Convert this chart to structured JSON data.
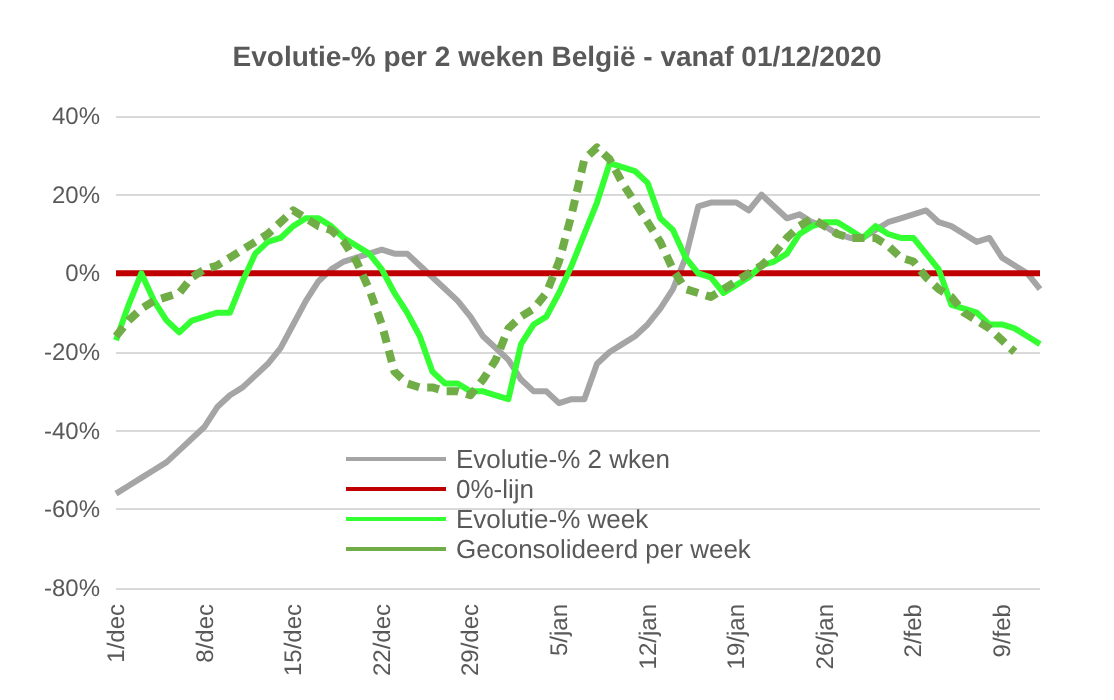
{
  "chart_data": {
    "type": "line",
    "title": "Evolutie-% per 2 weken België - vanaf 01/12/2020",
    "categories": [
      "1/dec",
      null,
      null,
      null,
      null,
      null,
      null,
      "8/dec",
      null,
      null,
      null,
      null,
      null,
      null,
      "15/dec",
      null,
      null,
      null,
      null,
      null,
      null,
      "22/dec",
      null,
      null,
      null,
      null,
      null,
      null,
      "29/dec",
      null,
      null,
      null,
      null,
      null,
      null,
      "5/jan",
      null,
      null,
      null,
      null,
      null,
      null,
      "12/jan",
      null,
      null,
      null,
      null,
      null,
      null,
      "19/jan",
      null,
      null,
      null,
      null,
      null,
      null,
      "26/jan",
      null,
      null,
      null,
      null,
      null,
      null,
      "2/feb",
      null,
      null,
      null,
      null,
      null,
      null,
      "9/feb",
      null,
      null,
      null
    ],
    "series": [
      {
        "name": "Evolutie-% 2 wken",
        "color": "#a5a5a5",
        "line_style": "solid",
        "values": [
          -56,
          -54,
          -52,
          -50,
          -48,
          -45,
          -42,
          -39,
          -34,
          -31,
          -29,
          -26,
          -23,
          -19,
          -13,
          -7,
          -2,
          1,
          3,
          4,
          5,
          6,
          5,
          5,
          2,
          -1,
          -4,
          -7,
          -11,
          -16,
          -19,
          -22,
          -27,
          -30,
          -30,
          -33,
          -32,
          -32,
          -23,
          -20,
          -18,
          -16,
          -13,
          -9,
          -4,
          4,
          17,
          18,
          18,
          18,
          16,
          20,
          17,
          14,
          15,
          13,
          12,
          10,
          9,
          9,
          11,
          13,
          14,
          15,
          16,
          13,
          12,
          10,
          8,
          9,
          4,
          2,
          0,
          -4
        ]
      },
      {
        "name": "0%-lijn",
        "color": "#c00000",
        "line_style": "solid",
        "values": [
          0,
          0,
          0,
          0,
          0,
          0,
          0,
          0,
          0,
          0,
          0,
          0,
          0,
          0,
          0,
          0,
          0,
          0,
          0,
          0,
          0,
          0,
          0,
          0,
          0,
          0,
          0,
          0,
          0,
          0,
          0,
          0,
          0,
          0,
          0,
          0,
          0,
          0,
          0,
          0,
          0,
          0,
          0,
          0,
          0,
          0,
          0,
          0,
          0,
          0,
          0,
          0,
          0,
          0,
          0,
          0,
          0,
          0,
          0,
          0,
          0,
          0,
          0,
          0,
          0,
          0,
          0,
          0,
          0,
          0,
          0,
          0,
          0,
          0
        ]
      },
      {
        "name": "Evolutie-% week",
        "color": "#33ff33",
        "line_style": "solid",
        "values": [
          -17,
          -8,
          0,
          -7,
          -12,
          -15,
          -12,
          -11,
          -10,
          -10,
          -2,
          5,
          8,
          9,
          12,
          14,
          14,
          12,
          9,
          7,
          5,
          1,
          -5,
          -10,
          -16,
          -25,
          -28,
          -28,
          -30,
          -30,
          -31,
          -32,
          -18,
          -13,
          -11,
          -5,
          2,
          10,
          18,
          28,
          27,
          26,
          23,
          14,
          11,
          4,
          0,
          -1,
          -5,
          -3,
          -1,
          2,
          3,
          5,
          10,
          12,
          13,
          13,
          11,
          9,
          12,
          10,
          9,
          9,
          5,
          1,
          -8,
          -9,
          -10,
          -13,
          -13,
          -14,
          -16,
          -18
        ]
      },
      {
        "name": "Geconsolideerd per week",
        "color": "#70ad47",
        "line_style": "dashed",
        "values": [
          -16,
          -12,
          -9,
          -7,
          -6,
          -5,
          -1,
          1,
          2,
          4,
          6,
          8,
          10,
          13,
          16,
          14,
          12,
          11,
          8,
          3,
          -4,
          -13,
          -25,
          -28,
          -29,
          -29,
          -30,
          -30,
          -31,
          -27,
          -22,
          -14,
          -11,
          -9,
          -5,
          3,
          15,
          29,
          32,
          29,
          23,
          18,
          13,
          8,
          1,
          -4,
          -5,
          -6,
          -4,
          -2,
          0,
          2,
          5,
          9,
          12,
          14,
          12,
          10,
          9,
          9,
          9,
          7,
          4,
          3,
          -1,
          -4,
          -6,
          -10,
          -12,
          -14,
          -17,
          -20,
          null,
          null
        ]
      }
    ],
    "ylim": [
      -80,
      40
    ],
    "yticks": [
      {
        "value": -80,
        "label": "-80%"
      },
      {
        "value": -60,
        "label": "-60%"
      },
      {
        "value": -40,
        "label": "-40%"
      },
      {
        "value": -20,
        "label": "-20%"
      },
      {
        "value": 0,
        "label": "0%"
      },
      {
        "value": 20,
        "label": "20%"
      },
      {
        "value": 40,
        "label": "40%"
      }
    ],
    "grid": "y",
    "legend": "bottom",
    "marker": "none"
  }
}
